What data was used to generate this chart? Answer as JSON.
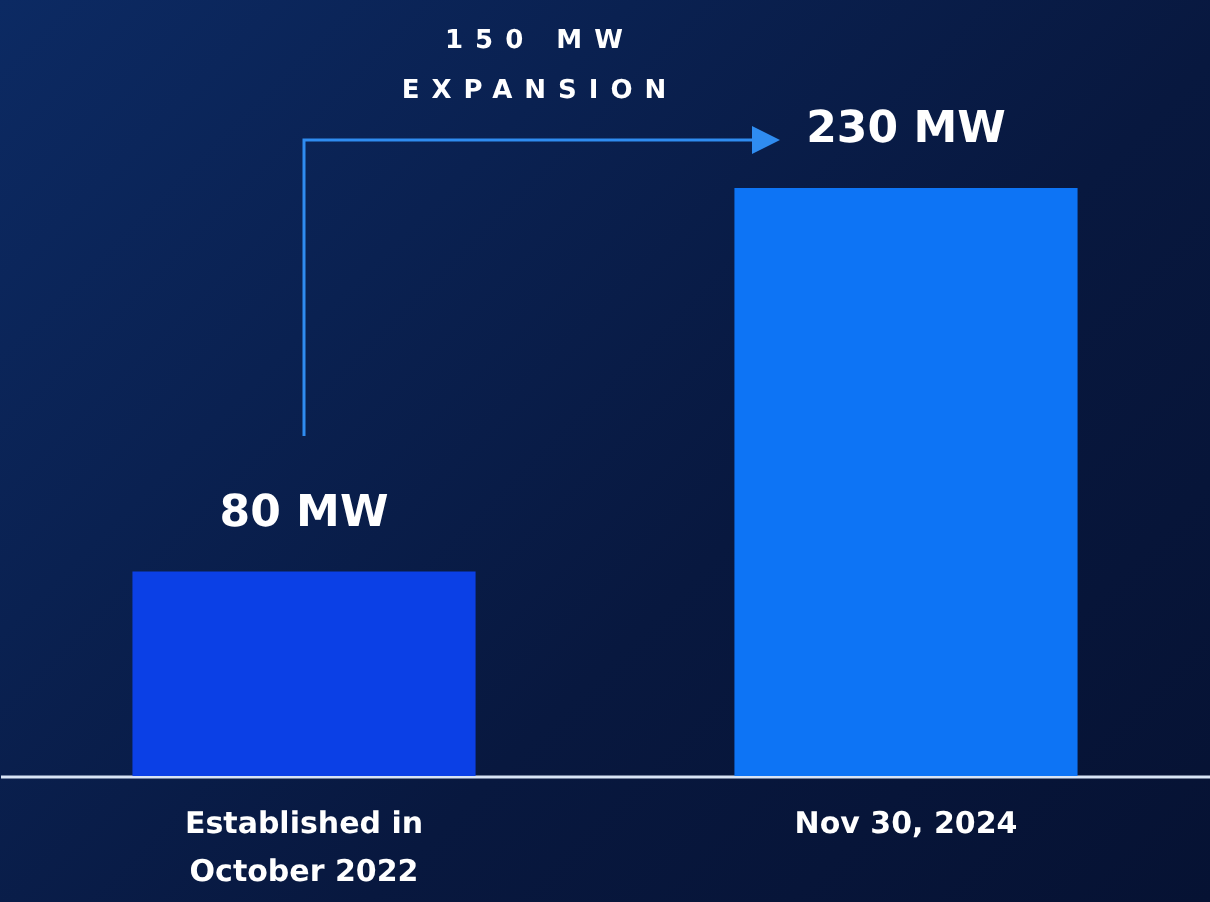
{
  "chart_data": {
    "type": "bar",
    "categories": [
      "Established in\nOctober 2022",
      "Nov 30, 2024"
    ],
    "values": [
      80,
      230
    ],
    "colors": [
      "#0b40e6",
      "#0d74f5"
    ],
    "value_labels": [
      "80 MW",
      "230 MW"
    ],
    "annotations": [
      "150 MW EXPANSION"
    ]
  }
}
